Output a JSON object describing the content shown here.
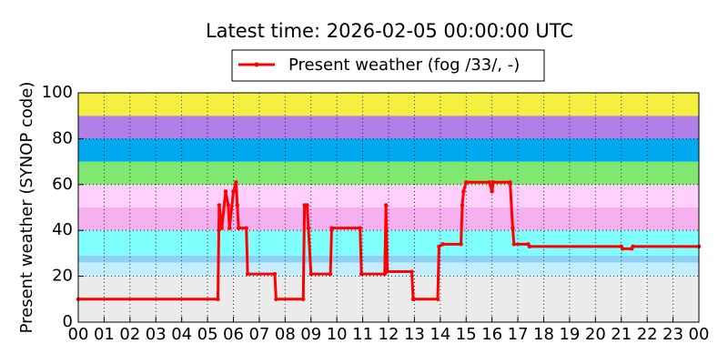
{
  "chart_data": {
    "type": "line",
    "title": "Latest time: 2026-02-05 00:00:00 UTC",
    "ylabel": "Present weather (SYNOP code)",
    "xlim": [
      0,
      24
    ],
    "ylim": [
      0,
      100
    ],
    "xticks": [
      {
        "value": 0,
        "label": "00"
      },
      {
        "value": 1,
        "label": "01"
      },
      {
        "value": 2,
        "label": "02"
      },
      {
        "value": 3,
        "label": "03"
      },
      {
        "value": 4,
        "label": "04"
      },
      {
        "value": 5,
        "label": "05"
      },
      {
        "value": 6,
        "label": "06"
      },
      {
        "value": 7,
        "label": "07"
      },
      {
        "value": 8,
        "label": "08"
      },
      {
        "value": 9,
        "label": "09"
      },
      {
        "value": 10,
        "label": "10"
      },
      {
        "value": 11,
        "label": "11"
      },
      {
        "value": 12,
        "label": "12"
      },
      {
        "value": 13,
        "label": "13"
      },
      {
        "value": 14,
        "label": "14"
      },
      {
        "value": 15,
        "label": "15"
      },
      {
        "value": 16,
        "label": "16"
      },
      {
        "value": 17,
        "label": "17"
      },
      {
        "value": 18,
        "label": "18"
      },
      {
        "value": 19,
        "label": "19"
      },
      {
        "value": 20,
        "label": "20"
      },
      {
        "value": 21,
        "label": "21"
      },
      {
        "value": 22,
        "label": "22"
      },
      {
        "value": 23,
        "label": "23"
      },
      {
        "value": 24,
        "label": "00"
      }
    ],
    "yticks": [
      0,
      20,
      40,
      60,
      80,
      100
    ],
    "grid": true,
    "bands": [
      {
        "from": 0,
        "to": 20,
        "color": "#ebebeb"
      },
      {
        "from": 20,
        "to": 26,
        "color": "#c4eeff"
      },
      {
        "from": 26,
        "to": 29,
        "color": "#90d0f5"
      },
      {
        "from": 29,
        "to": 40,
        "color": "#80ffff"
      },
      {
        "from": 40,
        "to": 50,
        "color": "#f5b0f0"
      },
      {
        "from": 50,
        "to": 60,
        "color": "#ffd0fc"
      },
      {
        "from": 60,
        "to": 70,
        "color": "#80e870"
      },
      {
        "from": 70,
        "to": 80,
        "color": "#00a8f0"
      },
      {
        "from": 80,
        "to": 90,
        "color": "#b080e8"
      },
      {
        "from": 90,
        "to": 100,
        "color": "#f5f040"
      }
    ],
    "x": [
      0,
      5.4,
      5.45,
      5.55,
      5.7,
      5.8,
      5.85,
      6.0,
      6.1,
      6.15,
      6.2,
      6.5,
      6.55,
      7.6,
      7.65,
      8.7,
      8.75,
      8.85,
      8.9,
      9.0,
      9.75,
      9.8,
      10.9,
      10.95,
      11.85,
      11.9,
      11.95,
      12.9,
      12.95,
      13.9,
      13.95,
      14.1,
      14.8,
      14.85,
      14.9,
      15.0,
      15.9,
      16.0,
      16.05,
      16.7,
      16.8,
      16.85,
      17.4,
      17.45,
      21.0,
      21.05,
      21.4,
      21.45,
      24
    ],
    "series": [
      {
        "name": "Present weather (fog /33/, -)",
        "color": "#ff0000",
        "values": [
          10,
          10,
          51,
          41,
          57,
          51,
          41,
          57,
          61,
          51,
          41,
          41,
          21,
          21,
          10,
          10,
          51,
          51,
          41,
          21,
          21,
          41,
          41,
          21,
          21,
          51,
          22,
          22,
          10,
          10,
          33,
          34,
          34,
          51,
          57,
          61,
          61,
          57,
          61,
          61,
          41,
          34,
          34,
          33,
          33,
          32,
          32,
          33,
          33
        ]
      }
    ]
  }
}
